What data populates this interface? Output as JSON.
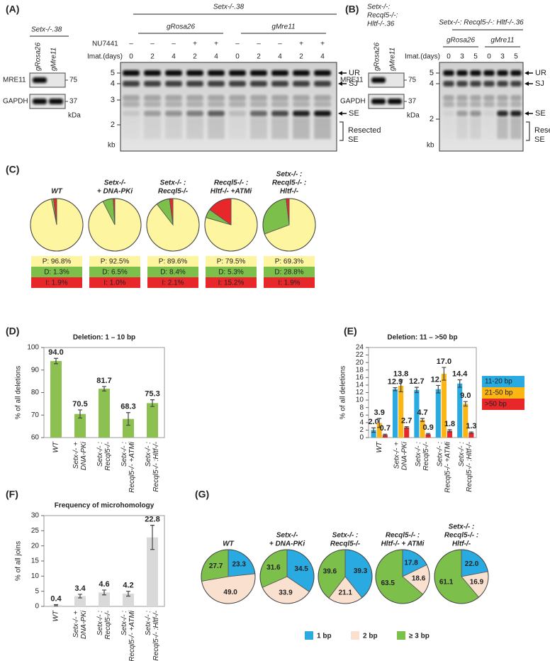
{
  "panel_labels": [
    "(A)",
    "(B)",
    "(C)",
    "(D)",
    "(E)",
    "(F)",
    "(G)"
  ],
  "blot_a": {
    "genotype": "Setx-/-.38",
    "lanes": [
      "gRosa26",
      "gMre11"
    ],
    "proteins": [
      "MRE11",
      "GAPDH"
    ],
    "sizes": [
      75,
      37
    ],
    "unit": "kDa"
  },
  "gel_a": {
    "genotype": "Setx-/-.38",
    "groups": [
      "gRosa26",
      "gMre11"
    ],
    "treatment": "NU7441",
    "treatment_marks": [
      "–",
      "–",
      "–",
      "+",
      "+",
      "–",
      "–",
      "–",
      "+",
      "+"
    ],
    "time_label": "Imat.(days)",
    "times": [
      0,
      2,
      4,
      2,
      4,
      0,
      2,
      4,
      2,
      4
    ],
    "markers": [
      5,
      4,
      3,
      2
    ],
    "marker_unit": "kb",
    "bands": [
      "UR",
      "SJ",
      "SE"
    ],
    "bracket": [
      "Resected",
      "SE"
    ]
  },
  "blot_b": {
    "genotype": [
      "Setx-/-:",
      "Recql5-/-:",
      "Hltf-/-.36"
    ],
    "lanes": [
      "gRosa26",
      "gMre11"
    ],
    "proteins": [
      "MRE11",
      "GAPDH"
    ],
    "sizes": [
      75,
      37
    ],
    "unit": "kDa"
  },
  "gel_b": {
    "genotype": "Setx-/-: Recql5-/-: Hltf-/-.36",
    "groups": [
      "gRosa26",
      "gMre11"
    ],
    "time_label": "Imat.(days)",
    "times": [
      0,
      3,
      5,
      0,
      3,
      5
    ],
    "markers": [
      5,
      4,
      2
    ],
    "marker_unit": "kb",
    "bands": [
      "UR",
      "SJ",
      "SE"
    ],
    "bracket": [
      "Resected",
      "SE"
    ]
  },
  "chart_data": [
    {
      "type": "pie",
      "colors": [
        "#fdf5a0",
        "#7cbf4a",
        "#e8272a"
      ],
      "pies": [
        {
          "title": [
            "WT"
          ],
          "values": [
            96.8,
            1.3,
            1.9
          ],
          "value_labels": [
            "P: 96.8%",
            "D: 1.3%",
            "I: 1.9%"
          ]
        },
        {
          "title": [
            "Setx-/-",
            "+ DNA-PKi"
          ],
          "values": [
            92.5,
            6.5,
            1.0
          ],
          "value_labels": [
            "P: 92.5%",
            "D: 6.5%",
            "I: 1.0%"
          ]
        },
        {
          "title": [
            "Setx-/- :",
            "Recql5-/-"
          ],
          "values": [
            89.6,
            8.4,
            2.1
          ],
          "value_labels": [
            "P: 89.6%",
            "D: 8.4%",
            "I: 2.1%"
          ]
        },
        {
          "title": [
            "Recql5-/- :",
            "Hltf-/- +ATMi"
          ],
          "values": [
            79.5,
            5.3,
            15.2
          ],
          "value_labels": [
            "P: 79.5%",
            "D: 5.3%",
            "I: 15.2%"
          ]
        },
        {
          "title": [
            "Setx-/- :",
            "Recql5-/- :",
            "Hltf-/-"
          ],
          "values": [
            69.3,
            28.8,
            1.9
          ],
          "value_labels": [
            "P: 69.3%",
            "D: 28.8%",
            "I: 1.9%"
          ]
        }
      ]
    },
    {
      "type": "bar",
      "title": "Deletion: 1 – 10 bp",
      "ylabel": "% of all deletions",
      "categories": [
        [
          "WT"
        ],
        [
          "Setx-/- +",
          "DNA-PKi"
        ],
        [
          "Setx-/- :",
          "Recql5-/-"
        ],
        [
          "Setx-/- :",
          "Recql5-/- +ATMi"
        ],
        [
          "Setx-/- :",
          "Recql5-/- :Hltf-/-"
        ]
      ],
      "series": [
        {
          "color": "#8cc152",
          "values": [
            94.0,
            70.5,
            81.7,
            68.3,
            75.3
          ],
          "errors": [
            1.2,
            1.8,
            1.0,
            2.8,
            1.5
          ],
          "value_labels": [
            "94.0",
            "70.5",
            "81.7",
            "68.3",
            "75.3"
          ]
        }
      ],
      "ylim": [
        60,
        100
      ],
      "yticks": [
        60,
        70,
        80,
        90,
        100
      ]
    },
    {
      "type": "bar",
      "title": "Deletion: 11 – >50 bp",
      "ylabel": "% of all deletions",
      "categories": [
        [
          "WT"
        ],
        [
          "Setx-/- +",
          "DNA-PKi"
        ],
        [
          "Setx-/- :",
          "Recql5-/-"
        ],
        [
          "Setx-/- :",
          "Recql5-/- +ATMi"
        ],
        [
          "Setx-/- :",
          "Recql5-/- :Hltf-/-"
        ]
      ],
      "series": [
        {
          "name": "11-20 bp",
          "color": "#29abe2",
          "values": [
            2.0,
            12.9,
            12.7,
            12.9,
            14.4
          ],
          "errors": [
            0.6,
            0.4,
            0.7,
            1.0,
            1.0
          ],
          "value_labels": [
            "2.0",
            "12.9",
            "12.7",
            "12.9",
            "14.4"
          ]
        },
        {
          "name": "21-50 bp",
          "color": "#fbb614",
          "values": [
            3.9,
            13.8,
            4.7,
            17.0,
            9.0
          ],
          "errors": [
            1.2,
            1.6,
            0.4,
            1.7,
            0.6
          ],
          "value_labels": [
            "3.9",
            "13.8",
            "4.7",
            "17.0",
            "9.0"
          ]
        },
        {
          "name": ">50 bp",
          "color": "#e8272a",
          "values": [
            0.7,
            2.7,
            0.9,
            1.8,
            1.3
          ],
          "errors": [
            0.2,
            0.2,
            0.2,
            0.3,
            0.2
          ],
          "value_labels": [
            "0.7",
            "2.7",
            "0.9",
            "1.8",
            "1.3"
          ]
        }
      ],
      "ylim": [
        0,
        24
      ],
      "yticks": [
        0,
        2,
        4,
        6,
        8,
        10,
        12,
        14,
        16,
        18,
        20,
        22,
        24
      ]
    },
    {
      "type": "bar",
      "title": "Frequency of microhomology",
      "ylabel": "% of all joins",
      "categories": [
        [
          "WT"
        ],
        [
          "Setx-/- +",
          "DNA-PKi"
        ],
        [
          "Setx-/- :",
          "Recql5-/-"
        ],
        [
          "Setx-/- :",
          "Recql5-/- +ATMi"
        ],
        [
          "Setx-/- :",
          "Recql5-/- :Hltf-/-"
        ]
      ],
      "series": [
        {
          "color": "#d9d9d9",
          "values": [
            0.4,
            3.4,
            4.6,
            4.2,
            22.8
          ],
          "errors": [
            0.2,
            0.6,
            0.8,
            0.8,
            4.0
          ],
          "value_labels": [
            "0.4",
            "3.4",
            "4.6",
            "4.2",
            "22.8"
          ]
        }
      ],
      "ylim": [
        0,
        30
      ],
      "yticks": [
        0,
        5,
        10,
        15,
        20,
        25,
        30
      ]
    },
    {
      "type": "pie",
      "categories": [
        "1 bp",
        "2 bp",
        "≥ 3 bp"
      ],
      "colors": [
        "#29abe2",
        "#f9e0cf",
        "#7cbf4a"
      ],
      "pies": [
        {
          "title": [
            "WT"
          ],
          "values": [
            23.3,
            49.0,
            27.7
          ],
          "value_labels": [
            "23.3",
            "49.0",
            "27.7"
          ]
        },
        {
          "title": [
            "Setx-/-",
            "+ DNA-PKi"
          ],
          "values": [
            34.5,
            33.9,
            31.6
          ],
          "value_labels": [
            "34.5",
            "33.9",
            "31.6"
          ]
        },
        {
          "title": [
            "Setx-/- :",
            "Recql5-/-"
          ],
          "values": [
            39.3,
            21.1,
            39.6
          ],
          "value_labels": [
            "39.3",
            "21.1",
            "39.6"
          ]
        },
        {
          "title": [
            "Recql5-/- :",
            "Hltf-/- + ATMi"
          ],
          "values": [
            17.8,
            18.6,
            63.5
          ],
          "value_labels": [
            "17.8",
            "18.6",
            "63.5"
          ]
        },
        {
          "title": [
            "Setx-/- :",
            "Recql5-/- :",
            "Hltf-/-"
          ],
          "values": [
            22.0,
            16.9,
            61.1
          ],
          "value_labels": [
            "22.0",
            "16.9",
            "61.1"
          ]
        }
      ]
    }
  ]
}
